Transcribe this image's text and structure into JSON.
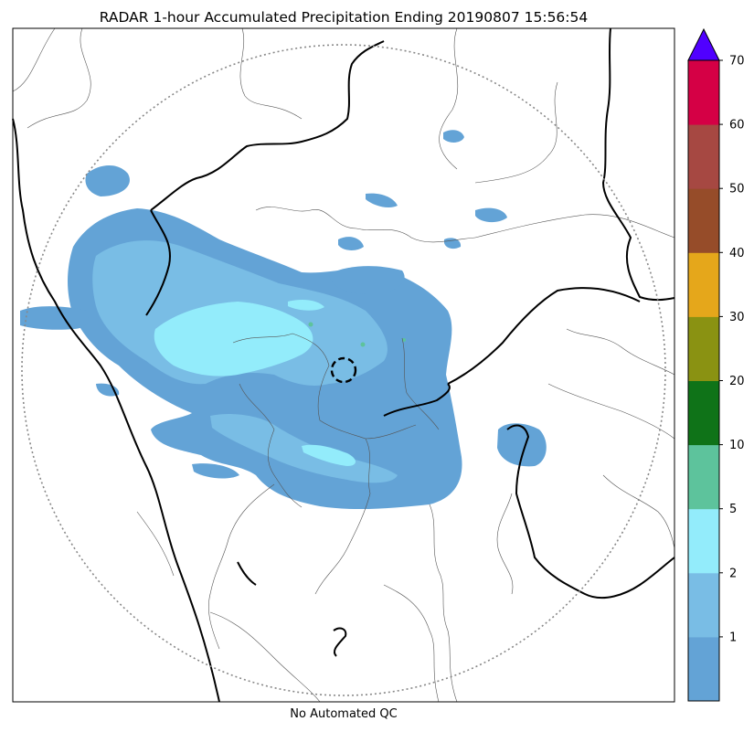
{
  "title": "RADAR 1-hour Accumulated Precipitation Ending 20190807 15:56:54",
  "footer": "No Automated QC",
  "colorbar": {
    "tick_labels": [
      "1",
      "2",
      "5",
      "10",
      "20",
      "30",
      "40",
      "50",
      "60",
      "70"
    ],
    "bins": [
      {
        "from": 0,
        "to": 1,
        "color": "#63a3d6"
      },
      {
        "from": 1,
        "to": 2,
        "color": "#79bde5"
      },
      {
        "from": 2,
        "to": 5,
        "color": "#93ecfb"
      },
      {
        "from": 5,
        "to": 10,
        "color": "#5dc39c"
      },
      {
        "from": 10,
        "to": 20,
        "color": "#0f7318"
      },
      {
        "from": 20,
        "to": 30,
        "color": "#8a9212"
      },
      {
        "from": 30,
        "to": 40,
        "color": "#e5a71b"
      },
      {
        "from": 40,
        "to": 50,
        "color": "#964c29"
      },
      {
        "from": 50,
        "to": 60,
        "color": "#a64842"
      },
      {
        "from": 60,
        "to": 70,
        "color": "#d50045"
      }
    ],
    "extend_max_color": "#5000ff"
  }
}
